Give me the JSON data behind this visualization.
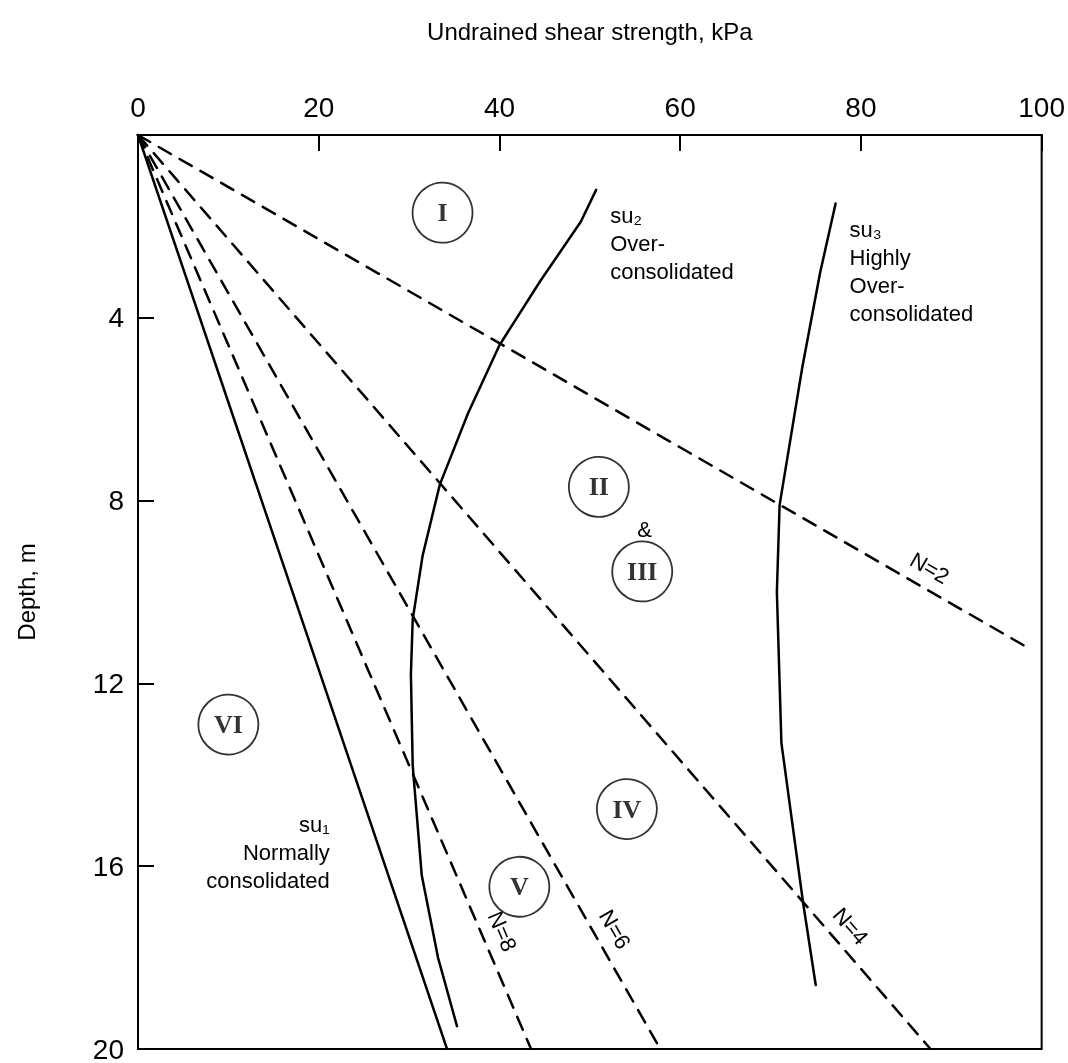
{
  "chart_data": {
    "type": "line",
    "xlabel": "Undrained shear strength, kPa",
    "ylabel": "Depth, m",
    "xlim": [
      0,
      100
    ],
    "xticks": [
      0,
      20,
      40,
      60,
      80,
      100
    ],
    "ylim": [
      20,
      0
    ],
    "yticks": [
      4,
      8,
      12,
      16,
      20
    ],
    "grid": false,
    "marker": "none",
    "series": [
      {
        "name": "su₁\nNormally\nconsolidated",
        "color": "#000000",
        "line_style": "solid",
        "x": [
          0,
          34.2
        ],
        "values": [
          0,
          20
        ]
      },
      {
        "name": "su₂\nOver-\nconsolidated",
        "color": "#000000",
        "line_style": "solid",
        "x": [
          50.7,
          49,
          44.5,
          40,
          36.5,
          33.4,
          31.5,
          30.4,
          30.2,
          30.4,
          31.4,
          33.2,
          35.3
        ],
        "values": [
          1.2,
          1.9,
          3.2,
          4.6,
          6.1,
          7.65,
          9.2,
          10.6,
          11.8,
          13.8,
          16.2,
          18,
          19.5
        ]
      },
      {
        "name": "su₃\nHighly\nOver-\nconsolidated",
        "color": "#000000",
        "line_style": "solid",
        "x": [
          77.2,
          75.5,
          73.5,
          71,
          70.7,
          71.2,
          73.6,
          75
        ],
        "values": [
          1.5,
          3,
          5.1,
          8.1,
          10,
          13.3,
          16.8,
          18.6
        ]
      },
      {
        "name": "N=2",
        "color": "#000000",
        "line_style": "dashed",
        "x": [
          0,
          98.3
        ],
        "values": [
          0,
          11.2
        ]
      },
      {
        "name": "N=4",
        "color": "#000000",
        "line_style": "dashed",
        "x": [
          0,
          87.7
        ],
        "values": [
          0,
          20
        ]
      },
      {
        "name": "N=6",
        "color": "#000000",
        "line_style": "dashed",
        "x": [
          0,
          57.8
        ],
        "values": [
          0,
          20
        ]
      },
      {
        "name": "N=8",
        "color": "#000000",
        "line_style": "dashed",
        "x": [
          0,
          43.5
        ],
        "values": [
          0,
          20
        ]
      },
      {
        "type": "scatter",
        "marker": "circle",
        "color": "#000000",
        "x": [
          33.7,
          51,
          55.8,
          54.1,
          42.2,
          10
        ],
        "values": [
          1.7,
          7.7,
          9.55,
          14.75,
          16.45,
          12.9
        ],
        "value_labels": [
          "I",
          "II",
          "III",
          "IV",
          "V",
          "VI"
        ]
      }
    ],
    "annotations": [
      "&"
    ]
  }
}
